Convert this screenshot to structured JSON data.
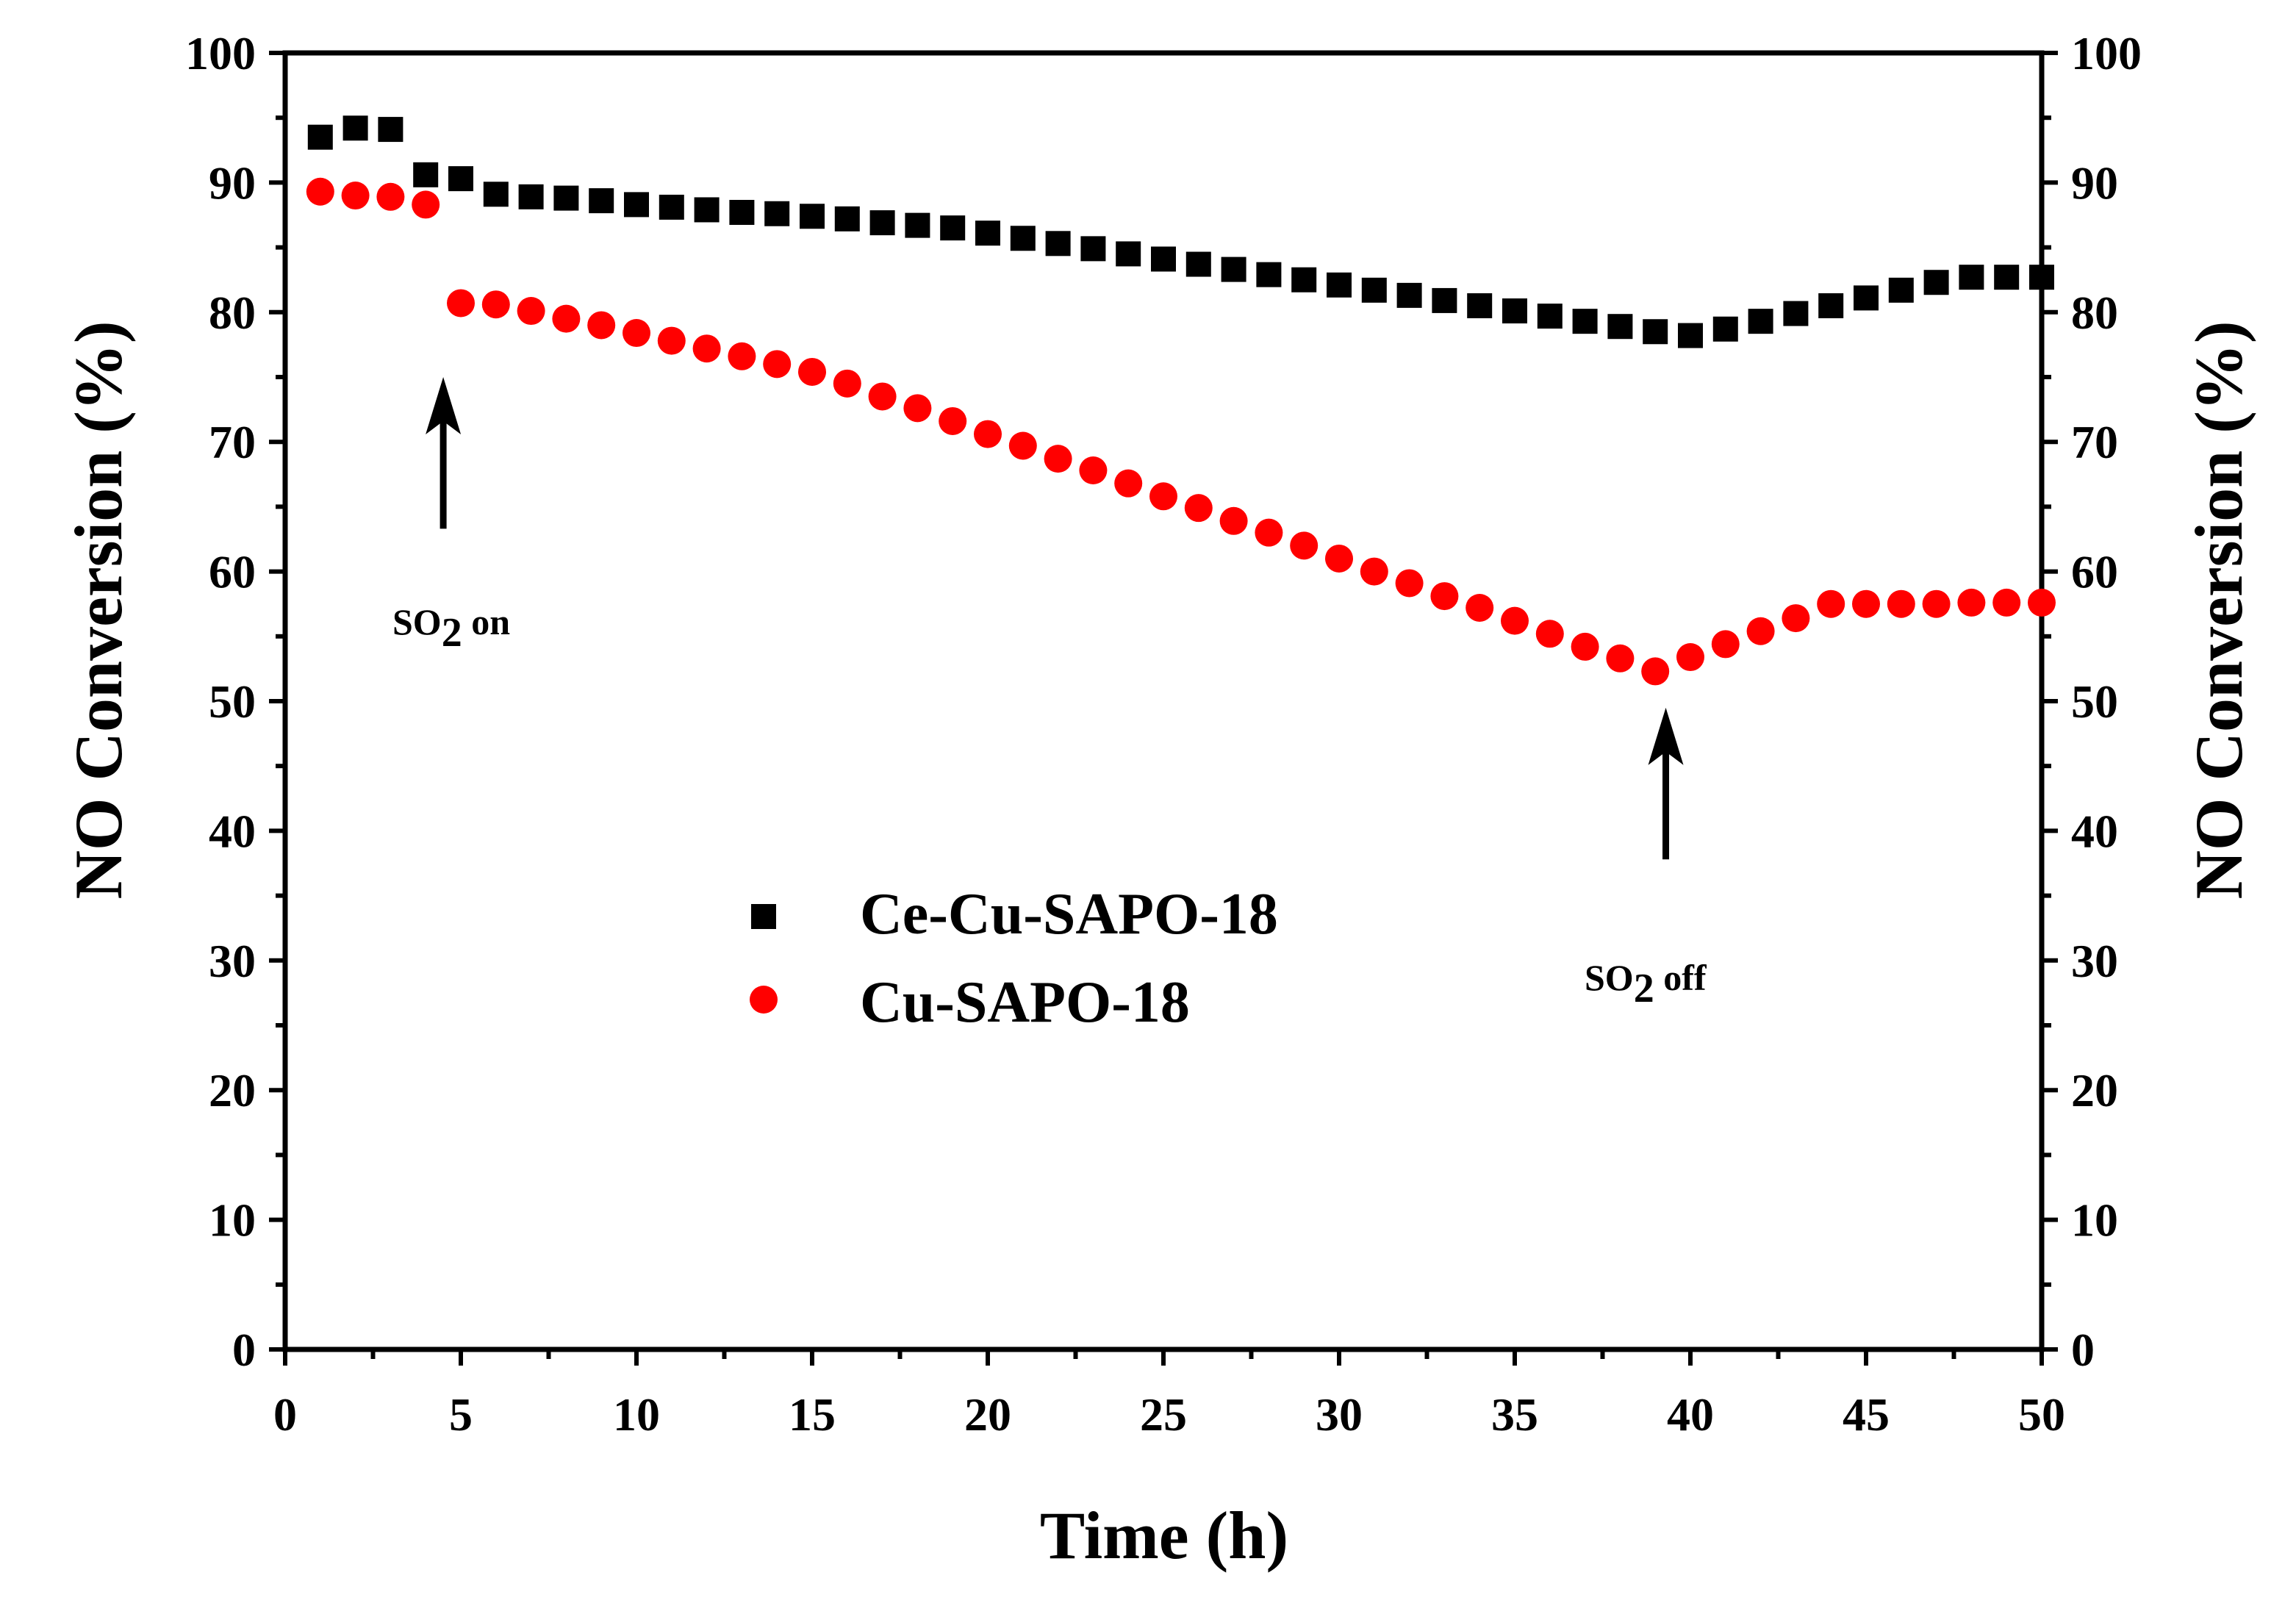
{
  "colors": {
    "series_black": "#000000",
    "series_red": "#ff0000",
    "axis": "#000000",
    "background": "#ffffff"
  },
  "chart_data": {
    "type": "scatter",
    "title": "",
    "xlabel": "Time (h)",
    "ylabel_left": "NO Conversion (%)",
    "ylabel_right": "NO Conversion (%)",
    "xlim": [
      0,
      50
    ],
    "ylim": [
      0,
      100
    ],
    "x_ticks": [
      "0",
      "5",
      "10",
      "15",
      "20",
      "25",
      "30",
      "35",
      "40",
      "45",
      "50"
    ],
    "y_ticks": [
      "0",
      "10",
      "20",
      "30",
      "40",
      "50",
      "60",
      "70",
      "80",
      "90",
      "100"
    ],
    "grid": false,
    "legend_position": "center-left",
    "series": [
      {
        "name": "Ce-Cu-SAPO-18",
        "marker": "square",
        "color": "#000000",
        "x": [
          1,
          2,
          3,
          4,
          5,
          6,
          7,
          8,
          9,
          10,
          11,
          12,
          13,
          14,
          15,
          16,
          17,
          18,
          19,
          20,
          21,
          22,
          23,
          24,
          25,
          26,
          27,
          28,
          29,
          30,
          31,
          32,
          33,
          34,
          35,
          36,
          37,
          38,
          39,
          40,
          41,
          42,
          43,
          44,
          45,
          46,
          47,
          48,
          49,
          50
        ],
        "values": [
          93.5,
          94.2,
          94.1,
          90.6,
          90.3,
          89.1,
          88.9,
          88.8,
          88.6,
          88.3,
          88.1,
          87.9,
          87.7,
          87.6,
          87.4,
          87.2,
          86.9,
          86.7,
          86.5,
          86.1,
          85.7,
          85.3,
          84.9,
          84.5,
          84.1,
          83.7,
          83.3,
          82.9,
          82.5,
          82.1,
          81.7,
          81.3,
          80.9,
          80.5,
          80.1,
          79.7,
          79.3,
          78.9,
          78.5,
          78.2,
          78.7,
          79.3,
          79.9,
          80.5,
          81.1,
          81.7,
          82.3,
          82.7,
          82.7,
          82.7
        ]
      },
      {
        "name": "Cu-SAPO-18",
        "marker": "circle",
        "color": "#ff0000",
        "x": [
          1,
          2,
          3,
          4,
          5,
          6,
          7,
          8,
          9,
          10,
          11,
          12,
          13,
          14,
          15,
          16,
          17,
          18,
          19,
          20,
          21,
          22,
          23,
          24,
          25,
          26,
          27,
          28,
          29,
          30,
          31,
          32,
          33,
          34,
          35,
          36,
          37,
          38,
          39,
          40,
          41,
          42,
          43,
          44,
          45,
          46,
          47,
          48,
          49,
          50
        ],
        "values": [
          89.3,
          89.0,
          88.9,
          88.3,
          80.7,
          80.6,
          80.1,
          79.5,
          79.0,
          78.4,
          77.8,
          77.2,
          76.6,
          76.0,
          75.4,
          74.5,
          73.5,
          72.6,
          71.6,
          70.6,
          69.7,
          68.7,
          67.8,
          66.8,
          65.8,
          64.9,
          63.9,
          63.0,
          62.0,
          61.0,
          60.0,
          59.1,
          58.1,
          57.2,
          56.2,
          55.2,
          54.2,
          53.3,
          52.3,
          53.4,
          54.4,
          55.4,
          56.4,
          57.5,
          57.5,
          57.5,
          57.5,
          57.6,
          57.6,
          57.6
        ]
      }
    ],
    "annotations": [
      {
        "name": "so2-on",
        "prefix": "SO",
        "subscript": "2",
        "suffix": " on",
        "arrow_x": 4.5,
        "arrow_tip_y": 75.0,
        "arrow_tail_y": 63.3
      },
      {
        "name": "so2-off",
        "prefix": "SO",
        "subscript": "2",
        "suffix": " off",
        "arrow_x": 39.3,
        "arrow_tip_y": 49.5,
        "arrow_tail_y": 37.8
      }
    ]
  }
}
